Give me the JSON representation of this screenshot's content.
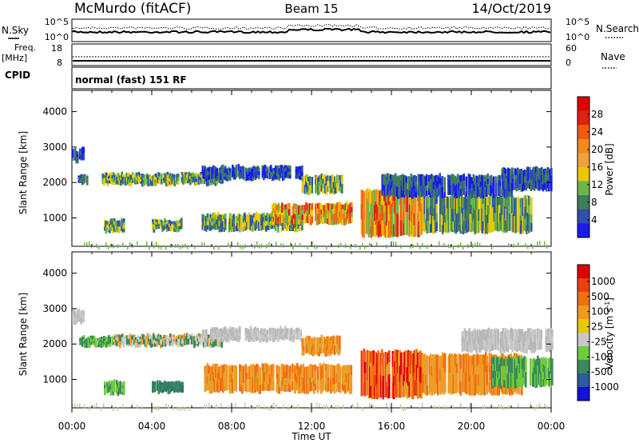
{
  "header": {
    "site": "McMurdo (fitACF)",
    "beam": "Beam 15",
    "date": "14/Oct/2019"
  },
  "noise_panel": {
    "left_label": "N.Sky",
    "right_label": "N.Search",
    "left_ticks": [
      "10^5",
      "10^0"
    ],
    "right_ticks": [
      "10^5",
      "10^0"
    ]
  },
  "freq_panel": {
    "left_label_top": "Freq.",
    "left_label_bottom": "[MHz]",
    "left_ticks": [
      "18",
      "8"
    ],
    "right_label": "Nave",
    "right_ticks": [
      "60",
      "0"
    ]
  },
  "cpid_panel": {
    "label": "CPID",
    "text": "normal (fast) 151 RF"
  },
  "chart_data": [
    {
      "type": "heatmap",
      "name": "power",
      "ylabel": "Slant Range [km]",
      "yticks": [
        "1000",
        "2000",
        "3000",
        "4000"
      ],
      "ylim": [
        200,
        4600
      ],
      "xlim_hours": [
        0,
        24
      ],
      "colorbar_label": "Power [dB]",
      "colorbar_ticks": [
        "4",
        "8",
        "12",
        "16",
        "20",
        "24",
        "28"
      ],
      "colorbar_colors": [
        "#1a1aee",
        "#2f4fb0",
        "#3e7e5a",
        "#6bb54a",
        "#e8c800",
        "#f2a23a",
        "#f28a1a",
        "#ee5a10",
        "#e02010",
        "#e00000"
      ],
      "echo_bands": [
        {
          "t0": 0.0,
          "t1": 0.6,
          "r0": 2600,
          "r1": 2950,
          "level": "low"
        },
        {
          "t0": 0.3,
          "t1": 0.9,
          "r0": 1950,
          "r1": 2200,
          "level": "low"
        },
        {
          "t0": 1.5,
          "t1": 7.5,
          "r0": 1950,
          "r1": 2250,
          "level": "mid"
        },
        {
          "t0": 6.5,
          "t1": 11.5,
          "r0": 2100,
          "r1": 2450,
          "level": "low"
        },
        {
          "t0": 1.6,
          "t1": 2.6,
          "r0": 600,
          "r1": 950,
          "level": "mid"
        },
        {
          "t0": 4.0,
          "t1": 5.5,
          "r0": 650,
          "r1": 950,
          "level": "mid"
        },
        {
          "t0": 6.5,
          "t1": 11.5,
          "r0": 650,
          "r1": 1100,
          "level": "mid"
        },
        {
          "t0": 10.0,
          "t1": 14.0,
          "r0": 850,
          "r1": 1400,
          "level": "high"
        },
        {
          "t0": 11.5,
          "t1": 13.5,
          "r0": 1700,
          "r1": 2200,
          "level": "mid"
        },
        {
          "t0": 14.4,
          "t1": 17.5,
          "r0": 500,
          "r1": 1800,
          "level": "high"
        },
        {
          "t0": 17.5,
          "t1": 23.0,
          "r0": 600,
          "r1": 1600,
          "level": "mid"
        },
        {
          "t0": 15.5,
          "t1": 22.0,
          "r0": 1600,
          "r1": 2200,
          "level": "low"
        },
        {
          "t0": 21.5,
          "t1": 24.0,
          "r0": 1800,
          "r1": 2400,
          "level": "low"
        }
      ]
    },
    {
      "type": "heatmap",
      "name": "velocity",
      "ylabel": "Slant Range [km]",
      "yticks": [
        "1000",
        "2000",
        "3000",
        "4000"
      ],
      "ylim": [
        200,
        4600
      ],
      "xlim_hours": [
        0,
        24
      ],
      "colorbar_label": "Velocity [m s^-1]",
      "colorbar_ticks": [
        "1000",
        "500",
        "100",
        "25",
        "-25",
        "-100",
        "-500",
        "-1000"
      ],
      "colorbar_colors": [
        "#1010e0",
        "#2d5aa0",
        "#3b8a5a",
        "#6ccc3c",
        "#c8c8c8",
        "#e8c800",
        "#f09a20",
        "#f07010",
        "#e84010",
        "#e00000"
      ],
      "echo_bands": [
        {
          "t0": 0.0,
          "t1": 0.6,
          "r0": 2600,
          "r1": 2950,
          "level": "gray"
        },
        {
          "t0": 0.3,
          "t1": 2.0,
          "r0": 1950,
          "r1": 2200,
          "level": "green"
        },
        {
          "t0": 2.0,
          "t1": 7.5,
          "r0": 1950,
          "r1": 2250,
          "level": "mixed"
        },
        {
          "t0": 6.5,
          "t1": 11.5,
          "r0": 2100,
          "r1": 2450,
          "level": "gray"
        },
        {
          "t0": 1.6,
          "t1": 2.6,
          "r0": 600,
          "r1": 950,
          "level": "green"
        },
        {
          "t0": 4.0,
          "t1": 5.5,
          "r0": 650,
          "r1": 950,
          "level": "teal"
        },
        {
          "t0": 6.5,
          "t1": 14.0,
          "r0": 650,
          "r1": 1400,
          "level": "orange"
        },
        {
          "t0": 11.5,
          "t1": 13.5,
          "r0": 1700,
          "r1": 2200,
          "level": "orange"
        },
        {
          "t0": 14.4,
          "t1": 17.5,
          "r0": 500,
          "r1": 1800,
          "level": "orange-red"
        },
        {
          "t0": 17.5,
          "t1": 22.5,
          "r0": 600,
          "r1": 1700,
          "level": "orange"
        },
        {
          "t0": 21.0,
          "t1": 24.0,
          "r0": 800,
          "r1": 1600,
          "level": "green"
        },
        {
          "t0": 19.5,
          "t1": 24.0,
          "r0": 1800,
          "r1": 2400,
          "level": "gray"
        }
      ]
    }
  ],
  "x_axis": {
    "ticks": [
      "00:00",
      "04:00",
      "08:00",
      "12:00",
      "16:00",
      "20:00",
      "00:00"
    ],
    "label": "Time UT"
  }
}
